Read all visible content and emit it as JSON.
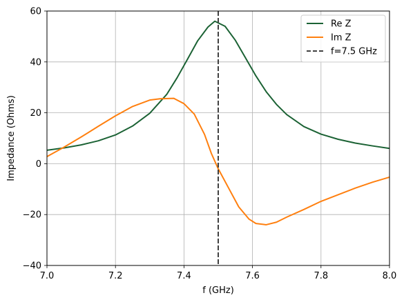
{
  "chart_data": {
    "type": "line",
    "xlabel": "f (GHz)",
    "ylabel": "Impedance (Ohms)",
    "xlim": [
      7.0,
      8.0
    ],
    "ylim": [
      -40,
      60
    ],
    "xticks": [
      "7.0",
      "7.2",
      "7.4",
      "7.6",
      "7.8",
      "8.0"
    ],
    "yticks": [
      "−40",
      "−20",
      "0",
      "20",
      "40",
      "60"
    ],
    "grid": true,
    "legend_position": "top-right",
    "series": [
      {
        "name": "Re Z",
        "color": "#1b6234",
        "style": "solid",
        "x": [
          7.0,
          7.05,
          7.1,
          7.15,
          7.2,
          7.25,
          7.3,
          7.35,
          7.38,
          7.41,
          7.44,
          7.47,
          7.49,
          7.52,
          7.55,
          7.58,
          7.61,
          7.64,
          7.67,
          7.7,
          7.75,
          7.8,
          7.85,
          7.9,
          7.95,
          8.0
        ],
        "y": [
          5.3,
          6.2,
          7.4,
          9.0,
          11.3,
          14.8,
          19.8,
          27.3,
          33.8,
          41.0,
          48.3,
          53.7,
          56.0,
          54.0,
          48.5,
          41.5,
          34.5,
          28.3,
          23.3,
          19.3,
          14.6,
          11.6,
          9.6,
          8.1,
          7.0,
          6.0
        ]
      },
      {
        "name": "Im Z",
        "color": "#ff7f0e",
        "style": "solid",
        "x": [
          7.0,
          7.05,
          7.1,
          7.15,
          7.2,
          7.25,
          7.3,
          7.33,
          7.37,
          7.4,
          7.43,
          7.46,
          7.48,
          7.5,
          7.53,
          7.56,
          7.59,
          7.61,
          7.64,
          7.67,
          7.7,
          7.75,
          7.8,
          7.85,
          7.9,
          7.95,
          8.0
        ],
        "y": [
          2.8,
          6.5,
          10.5,
          14.7,
          18.8,
          22.5,
          25.0,
          25.5,
          25.7,
          23.6,
          19.5,
          11.5,
          4.0,
          -2.0,
          -9.5,
          -17.0,
          -21.8,
          -23.5,
          -24.0,
          -23.0,
          -21.0,
          -18.0,
          -14.8,
          -12.2,
          -9.6,
          -7.3,
          -5.3
        ]
      },
      {
        "name": "f=7.5 GHz",
        "color": "#404040",
        "style": "dashed",
        "vline_x": 7.5
      }
    ]
  }
}
